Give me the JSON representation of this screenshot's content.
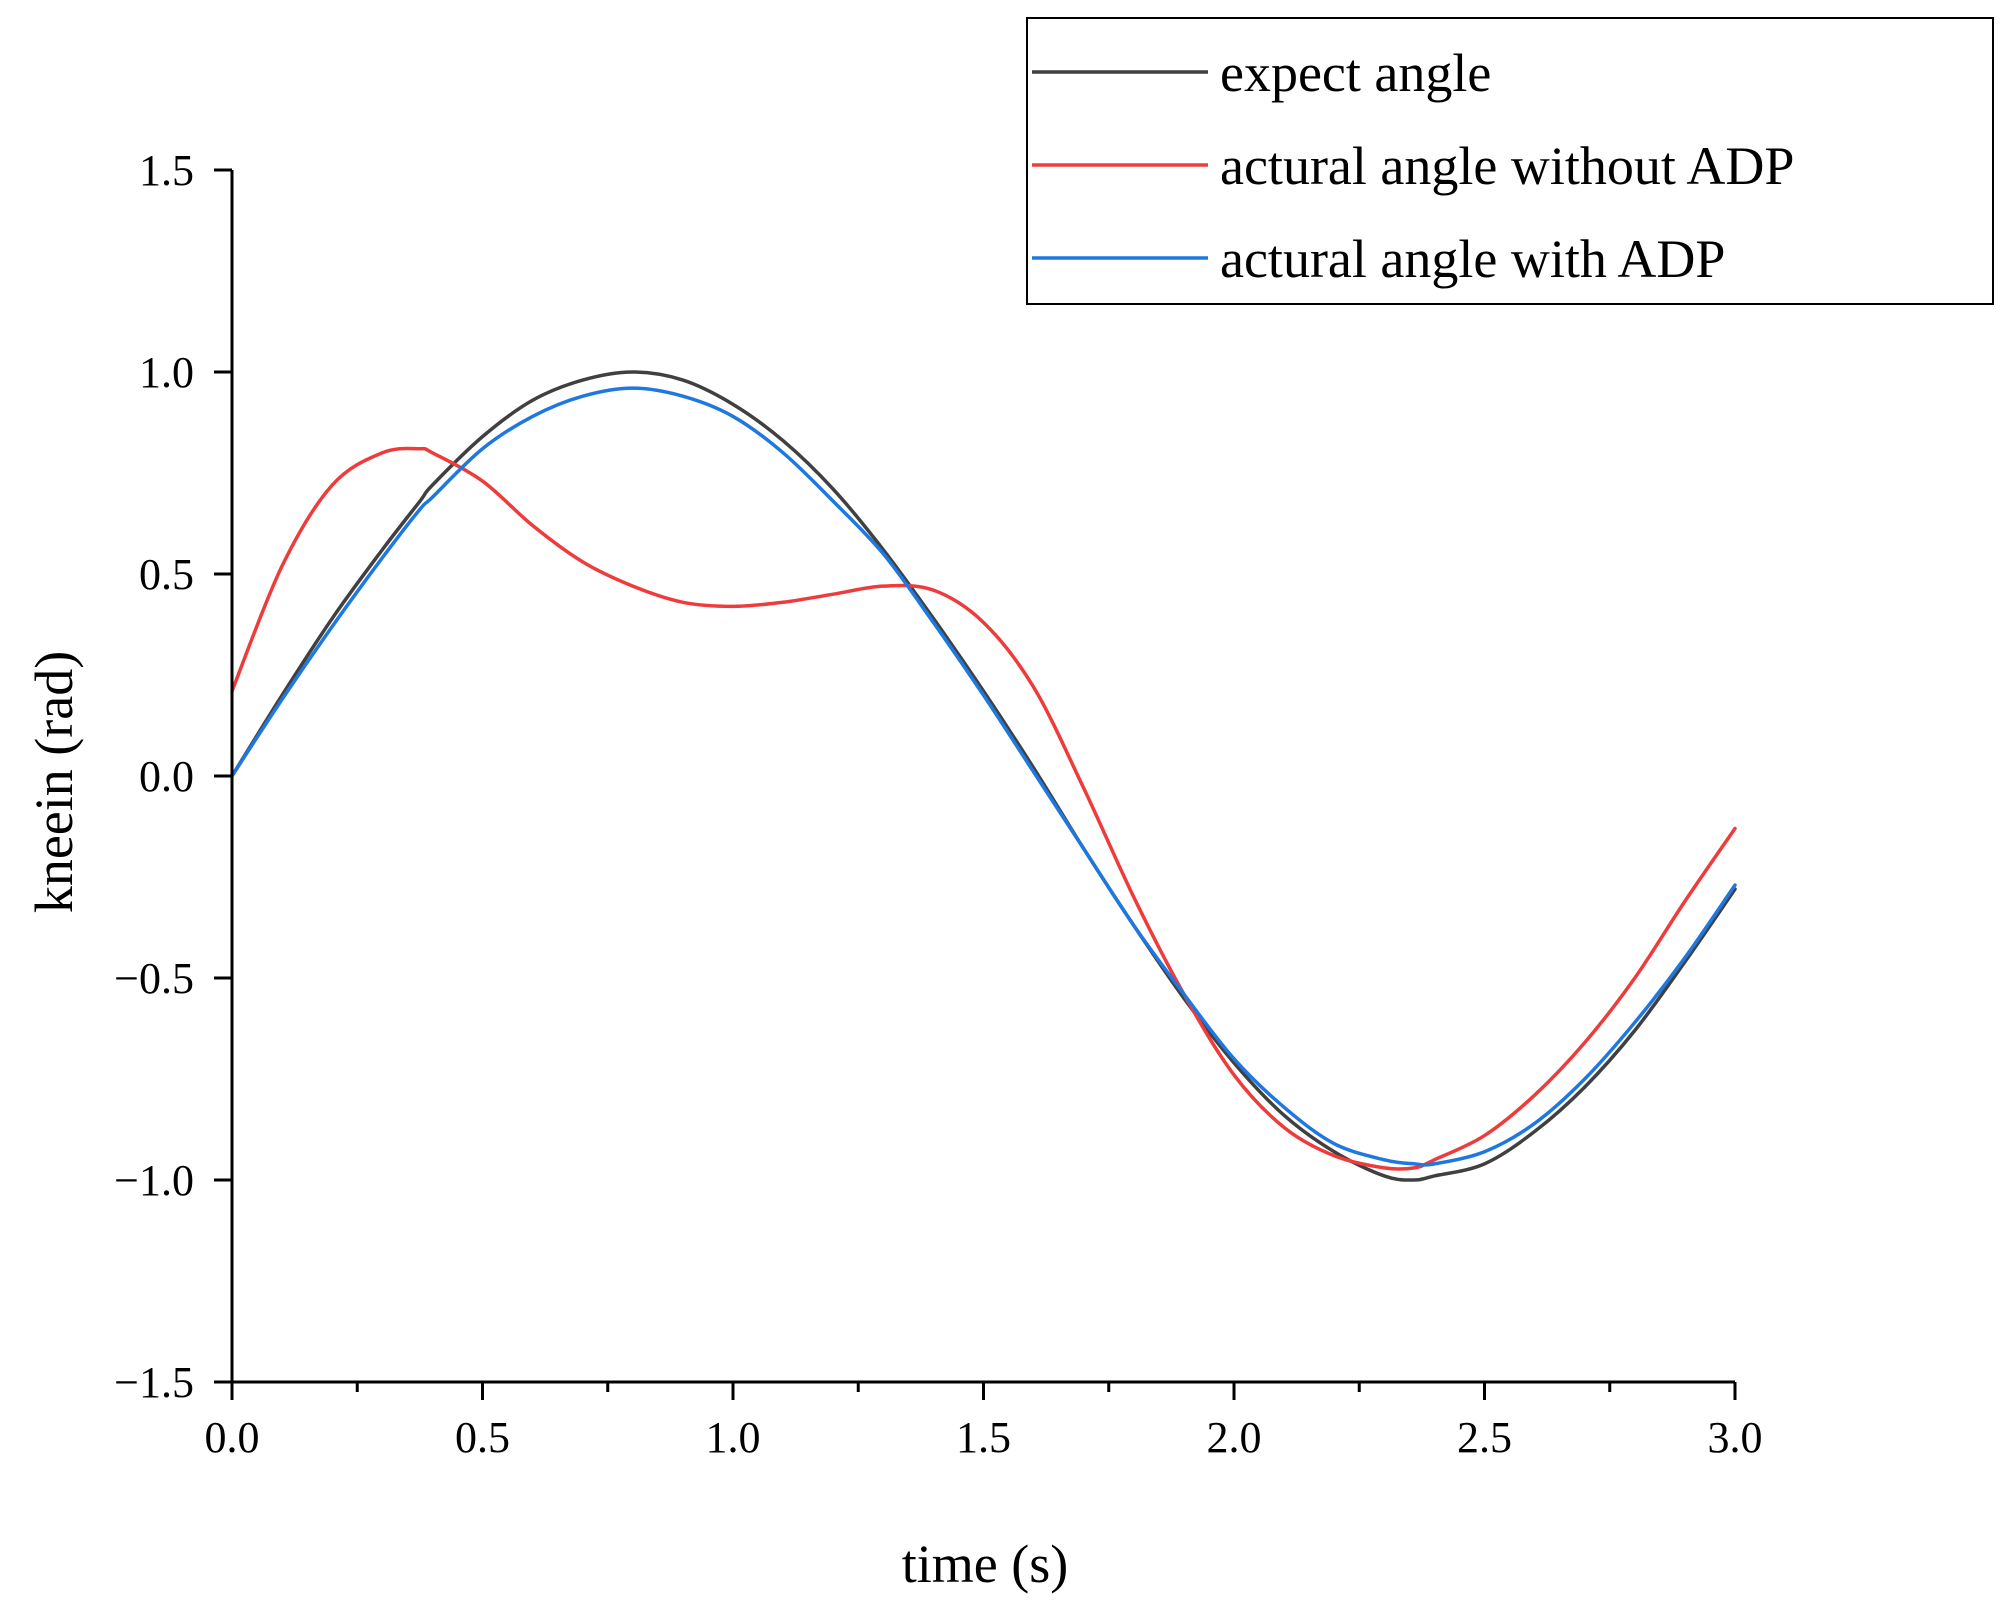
{
  "chart_data": {
    "type": "line",
    "title": "",
    "xlabel": "time (s)",
    "ylabel": "kneein (rad)",
    "xlim": [
      0,
      3
    ],
    "ylim": [
      -1.5,
      1.5
    ],
    "grid": false,
    "legend_position": "top-right",
    "x_ticks": [
      {
        "value": 0.0,
        "label": "0.0"
      },
      {
        "value": 0.5,
        "label": "0.5"
      },
      {
        "value": 1.0,
        "label": "1.0"
      },
      {
        "value": 1.5,
        "label": "1.5"
      },
      {
        "value": 2.0,
        "label": "2.0"
      },
      {
        "value": 2.5,
        "label": "2.5"
      },
      {
        "value": 3.0,
        "label": "3.0"
      }
    ],
    "x_minor_ticks": [
      0.25,
      0.75,
      1.25,
      1.75,
      2.25,
      2.75
    ],
    "y_ticks": [
      {
        "value": 1.5,
        "label": "1.5"
      },
      {
        "value": 1.0,
        "label": "1.0"
      },
      {
        "value": 0.5,
        "label": "0.5"
      },
      {
        "value": 0.0,
        "label": "0.0"
      },
      {
        "value": -0.5,
        "label": "−0.5"
      },
      {
        "value": -1.0,
        "label": "−1.0"
      },
      {
        "value": -1.5,
        "label": "−1.5"
      }
    ],
    "x": [
      0.0,
      0.1,
      0.2,
      0.3,
      0.375,
      0.4,
      0.5,
      0.6,
      0.7,
      0.8,
      0.9,
      1.0,
      1.1,
      1.2,
      1.3,
      1.4,
      1.5,
      1.6,
      1.7,
      1.8,
      1.9,
      2.0,
      2.1,
      2.2,
      2.3,
      2.36,
      2.4,
      2.5,
      2.6,
      2.7,
      2.8,
      2.9,
      3.0
    ],
    "series": [
      {
        "name": "expect angle",
        "color": "#404040",
        "values": [
          0.0,
          0.2,
          0.39,
          0.56,
          0.68,
          0.72,
          0.84,
          0.93,
          0.98,
          1.0,
          0.98,
          0.92,
          0.83,
          0.71,
          0.56,
          0.39,
          0.21,
          0.02,
          -0.18,
          -0.37,
          -0.55,
          -0.71,
          -0.84,
          -0.93,
          -0.99,
          -1.0,
          -0.99,
          -0.96,
          -0.88,
          -0.77,
          -0.63,
          -0.46,
          -0.28
        ]
      },
      {
        "name": "actural angle without ADP",
        "color": "#ee3b3b",
        "values": [
          0.21,
          0.52,
          0.72,
          0.8,
          0.81,
          0.8,
          0.73,
          0.62,
          0.53,
          0.47,
          0.43,
          0.42,
          0.43,
          0.45,
          0.47,
          0.46,
          0.38,
          0.22,
          -0.03,
          -0.3,
          -0.54,
          -0.74,
          -0.87,
          -0.94,
          -0.97,
          -0.97,
          -0.95,
          -0.89,
          -0.79,
          -0.66,
          -0.5,
          -0.31,
          -0.13
        ]
      },
      {
        "name": "actural angle with ADP",
        "color": "#1f78e0",
        "values": [
          0.0,
          0.19,
          0.37,
          0.54,
          0.66,
          0.69,
          0.81,
          0.89,
          0.94,
          0.96,
          0.94,
          0.89,
          0.8,
          0.68,
          0.55,
          0.38,
          0.2,
          0.01,
          -0.18,
          -0.37,
          -0.54,
          -0.7,
          -0.82,
          -0.91,
          -0.95,
          -0.96,
          -0.96,
          -0.93,
          -0.86,
          -0.75,
          -0.61,
          -0.45,
          -0.27
        ]
      }
    ]
  }
}
